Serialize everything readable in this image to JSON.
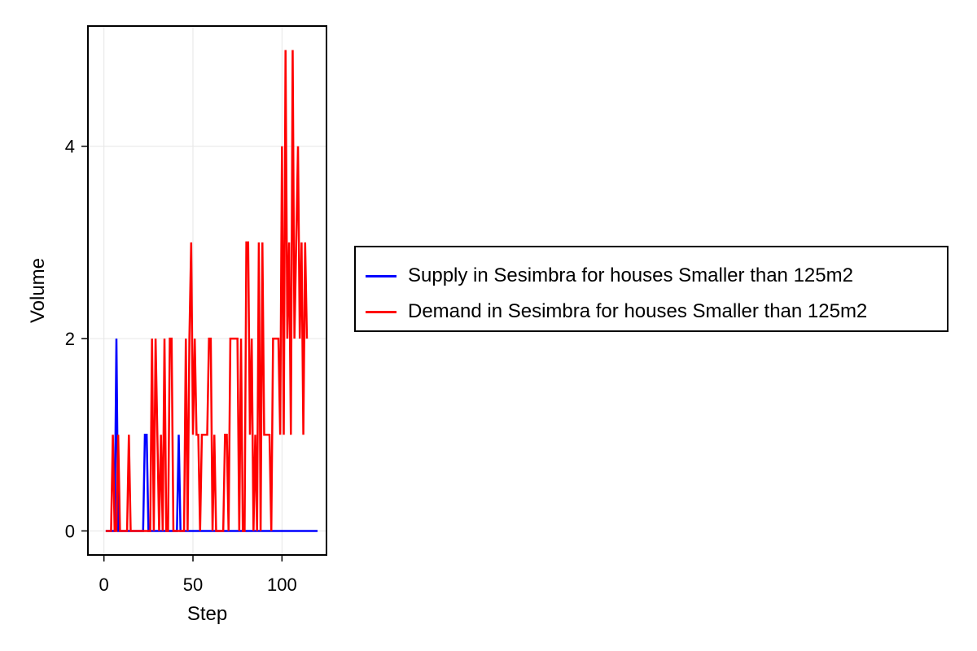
{
  "chart_data": {
    "type": "line",
    "xlabel": "Step",
    "ylabel": "Volume",
    "xlim": [
      -9,
      125
    ],
    "ylim": [
      -0.25,
      5.25
    ],
    "xticks": [
      0,
      50,
      100
    ],
    "yticks": [
      0,
      2,
      4
    ],
    "grid": true,
    "legend_position": "right",
    "series": [
      {
        "name": "Supply in Sesimbra for houses Smaller than 125m2",
        "color": "#0000ff",
        "values": [
          0,
          0,
          0,
          0,
          0,
          0,
          2,
          0,
          0,
          0,
          0,
          0,
          0,
          0,
          0,
          0,
          0,
          0,
          0,
          0,
          0,
          0,
          1,
          1,
          0,
          0,
          0,
          0,
          0,
          0,
          0,
          0,
          0,
          0,
          0,
          0,
          0,
          0,
          0,
          0,
          0,
          1,
          0,
          0,
          0,
          0,
          0,
          0,
          0,
          0,
          0,
          0,
          0,
          0,
          0,
          0,
          0,
          0,
          0,
          0,
          0,
          0,
          0,
          0,
          0,
          0,
          0,
          0,
          0,
          0,
          0,
          0,
          0,
          0,
          0,
          0,
          0,
          0,
          0,
          0,
          0,
          0,
          0,
          0,
          0,
          0,
          0,
          0,
          0,
          0,
          0,
          0,
          0,
          0,
          0,
          0,
          0,
          0,
          0,
          0,
          0,
          0,
          0,
          0,
          0,
          0,
          0,
          0,
          0,
          0,
          0,
          0,
          0,
          0,
          0,
          0,
          0,
          0,
          0,
          0
        ]
      },
      {
        "name": "Demand in Sesimbra for houses Smaller than 125m2",
        "color": "#ff0000",
        "values": [
          0,
          0,
          0,
          0,
          1,
          0,
          0,
          1,
          0,
          0,
          0,
          0,
          0,
          1,
          0,
          0,
          0,
          0,
          0,
          0,
          0,
          0,
          0,
          0,
          0,
          0,
          2,
          0,
          2,
          1,
          0,
          1,
          0,
          2,
          0,
          0,
          2,
          2,
          0,
          0,
          0,
          0,
          0,
          0,
          0,
          2,
          0,
          2,
          3,
          1,
          2,
          1,
          1,
          0,
          1,
          1,
          1,
          1,
          2,
          2,
          0,
          1,
          0,
          0,
          0,
          0,
          0,
          1,
          1,
          0,
          2,
          2,
          2,
          2,
          2,
          0,
          2,
          0,
          0,
          3,
          3,
          1,
          2,
          0,
          1,
          0,
          3,
          0,
          3,
          1,
          1,
          1,
          1,
          0,
          2,
          2,
          2,
          2,
          1,
          4,
          1,
          5,
          2,
          3,
          1,
          5,
          2,
          3,
          4,
          2,
          3,
          1,
          3,
          2
        ]
      }
    ]
  }
}
